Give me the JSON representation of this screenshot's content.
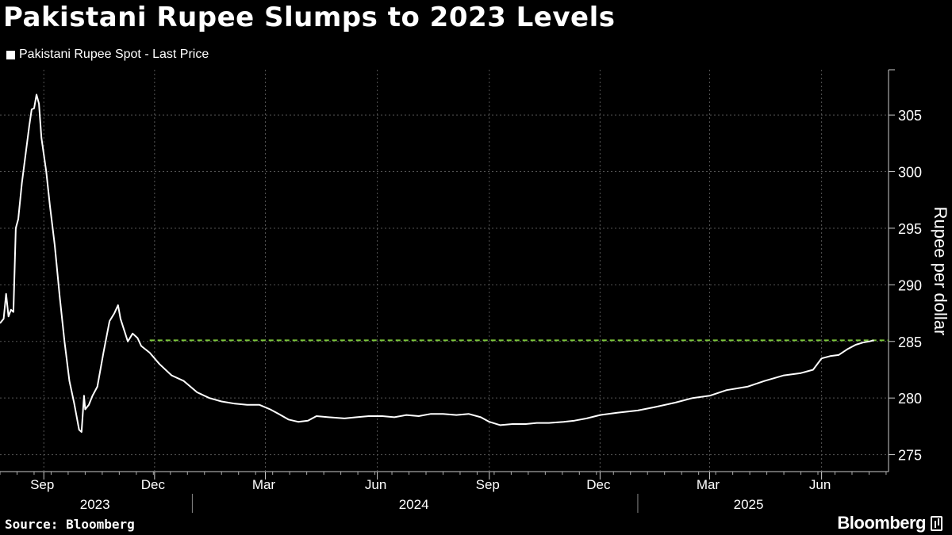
{
  "title": "Pakistani Rupee Slumps to 2023 Levels",
  "legend_label": "Pakistani Rupee Spot - Last Price",
  "source": "Source: Bloomberg",
  "brand": "Bloomberg",
  "colors": {
    "background": "#000000",
    "line": "#ffffff",
    "reference": "#7dc83b",
    "grid": "#555555"
  },
  "chart_data": {
    "type": "line",
    "title": "Pakistani Rupee Slumps to 2023 Levels",
    "ylabel": "Rupee per dollar",
    "xlabel": "",
    "ylim": [
      273.5,
      309
    ],
    "xlim": [
      "2023-07-27",
      "2025-07-26"
    ],
    "y_ticks": [
      275,
      280,
      285,
      290,
      295,
      300,
      305
    ],
    "grid": true,
    "legend": "top-left",
    "x_month_ticks": [
      {
        "label": "Sep",
        "date": "2023-09-01"
      },
      {
        "label": "Dec",
        "date": "2023-12-01"
      },
      {
        "label": "Mar",
        "date": "2024-03-01"
      },
      {
        "label": "Jun",
        "date": "2024-06-01"
      },
      {
        "label": "Sep",
        "date": "2024-09-01"
      },
      {
        "label": "Dec",
        "date": "2024-12-01"
      },
      {
        "label": "Mar",
        "date": "2025-03-01"
      },
      {
        "label": "Jun",
        "date": "2025-06-01"
      }
    ],
    "x_year_labels": [
      {
        "label": "2023",
        "date": "2023-10-13"
      },
      {
        "label": "2024",
        "date": "2024-07-01"
      },
      {
        "label": "2025",
        "date": "2025-04-02"
      }
    ],
    "reference_line": {
      "value": 285.1,
      "style": "dashed",
      "from": "2023-11-27",
      "to": "2025-07-26"
    },
    "series": [
      {
        "name": "Pakistani Rupee Spot - Last Price",
        "points": [
          [
            "2023-07-27",
            286.6
          ],
          [
            "2023-07-30",
            287.0
          ],
          [
            "2023-08-01",
            289.2
          ],
          [
            "2023-08-03",
            287.2
          ],
          [
            "2023-08-05",
            287.8
          ],
          [
            "2023-08-07",
            287.6
          ],
          [
            "2023-08-09",
            295.0
          ],
          [
            "2023-08-11",
            295.8
          ],
          [
            "2023-08-14",
            299.0
          ],
          [
            "2023-08-17",
            301.5
          ],
          [
            "2023-08-20",
            304.0
          ],
          [
            "2023-08-22",
            305.5
          ],
          [
            "2023-08-24",
            305.6
          ],
          [
            "2023-08-26",
            306.8
          ],
          [
            "2023-08-28",
            306.0
          ],
          [
            "2023-08-30",
            303.0
          ],
          [
            "2023-09-03",
            300.0
          ],
          [
            "2023-09-06",
            297.0
          ],
          [
            "2023-09-10",
            293.5
          ],
          [
            "2023-09-14",
            289.0
          ],
          [
            "2023-09-18",
            285.0
          ],
          [
            "2023-09-22",
            281.5
          ],
          [
            "2023-09-26",
            279.5
          ],
          [
            "2023-09-30",
            277.2
          ],
          [
            "2023-10-02",
            277.0
          ],
          [
            "2023-10-04",
            280.2
          ],
          [
            "2023-10-05",
            279.0
          ],
          [
            "2023-10-08",
            279.4
          ],
          [
            "2023-10-11",
            280.2
          ],
          [
            "2023-10-15",
            281.0
          ],
          [
            "2023-10-20",
            284.0
          ],
          [
            "2023-10-25",
            286.8
          ],
          [
            "2023-10-29",
            287.5
          ],
          [
            "2023-11-01",
            288.2
          ],
          [
            "2023-11-03",
            287.0
          ],
          [
            "2023-11-06",
            286.0
          ],
          [
            "2023-11-09",
            285.0
          ],
          [
            "2023-11-13",
            285.7
          ],
          [
            "2023-11-17",
            285.3
          ],
          [
            "2023-11-20",
            284.6
          ],
          [
            "2023-11-27",
            284.0
          ],
          [
            "2023-12-05",
            283.0
          ],
          [
            "2023-12-15",
            282.0
          ],
          [
            "2023-12-25",
            281.5
          ],
          [
            "2024-01-05",
            280.5
          ],
          [
            "2024-01-15",
            280.0
          ],
          [
            "2024-01-25",
            279.7
          ],
          [
            "2024-02-05",
            279.5
          ],
          [
            "2024-02-15",
            279.4
          ],
          [
            "2024-02-25",
            279.4
          ],
          [
            "2024-03-05",
            279.0
          ],
          [
            "2024-03-12",
            278.6
          ],
          [
            "2024-03-20",
            278.1
          ],
          [
            "2024-03-28",
            277.9
          ],
          [
            "2024-04-05",
            278.0
          ],
          [
            "2024-04-12",
            278.4
          ],
          [
            "2024-04-22",
            278.3
          ],
          [
            "2024-05-05",
            278.2
          ],
          [
            "2024-05-15",
            278.3
          ],
          [
            "2024-05-25",
            278.4
          ],
          [
            "2024-06-05",
            278.4
          ],
          [
            "2024-06-15",
            278.3
          ],
          [
            "2024-06-25",
            278.5
          ],
          [
            "2024-07-05",
            278.4
          ],
          [
            "2024-07-15",
            278.6
          ],
          [
            "2024-07-25",
            278.6
          ],
          [
            "2024-08-05",
            278.5
          ],
          [
            "2024-08-15",
            278.6
          ],
          [
            "2024-08-25",
            278.3
          ],
          [
            "2024-09-01",
            277.9
          ],
          [
            "2024-09-10",
            277.6
          ],
          [
            "2024-09-20",
            277.7
          ],
          [
            "2024-10-01",
            277.7
          ],
          [
            "2024-10-10",
            277.8
          ],
          [
            "2024-10-20",
            277.8
          ],
          [
            "2024-11-01",
            277.9
          ],
          [
            "2024-11-10",
            278.0
          ],
          [
            "2024-11-20",
            278.2
          ],
          [
            "2024-12-01",
            278.5
          ],
          [
            "2024-12-15",
            278.7
          ],
          [
            "2025-01-01",
            278.9
          ],
          [
            "2025-01-15",
            279.2
          ],
          [
            "2025-02-01",
            279.6
          ],
          [
            "2025-02-15",
            280.0
          ],
          [
            "2025-03-01",
            280.2
          ],
          [
            "2025-03-15",
            280.7
          ],
          [
            "2025-04-01",
            281.0
          ],
          [
            "2025-04-15",
            281.5
          ],
          [
            "2025-05-01",
            282.0
          ],
          [
            "2025-05-15",
            282.2
          ],
          [
            "2025-05-25",
            282.5
          ],
          [
            "2025-06-01",
            283.5
          ],
          [
            "2025-06-08",
            283.7
          ],
          [
            "2025-06-15",
            283.8
          ],
          [
            "2025-06-22",
            284.3
          ],
          [
            "2025-06-29",
            284.7
          ],
          [
            "2025-07-05",
            284.9
          ],
          [
            "2025-07-10",
            285.0
          ],
          [
            "2025-07-14",
            285.1
          ]
        ]
      }
    ]
  }
}
